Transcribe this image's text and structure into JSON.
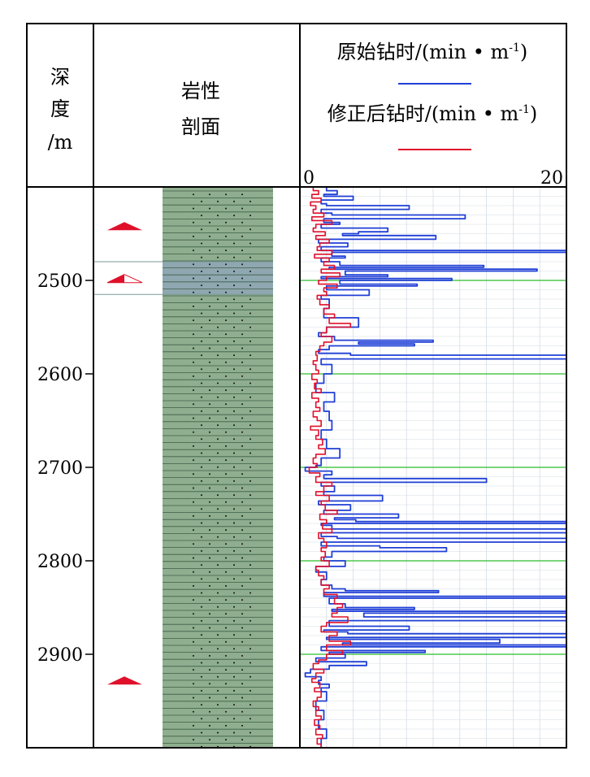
{
  "headers": {
    "depth": [
      "深",
      "度",
      "/m"
    ],
    "lithology": [
      "岩性",
      "剖面"
    ],
    "raw_label": "原始钻时/(min • m",
    "corr_label": "修正后钻时/(min • m",
    "unit_sup": "-1",
    "unit_close": ")"
  },
  "colors": {
    "raw": "#1f3fd6",
    "corrected": "#e0102a",
    "marker_green": "#2bbd2b",
    "sandstone": "#8fae8f",
    "sandstone_blue": "#8fa7b0",
    "triangle": "#e0102a",
    "grid": "#d4dde4"
  },
  "chart_data": {
    "type": "line",
    "orientation": "vertical-depth-track",
    "depth_axis": {
      "label": "深度/m",
      "range": [
        2400,
        3000
      ],
      "inverted": true,
      "ticks": [
        2500,
        2600,
        2700,
        2800,
        2900
      ]
    },
    "value_axis": {
      "label": "钻时/(min • m-1)",
      "range": [
        0,
        20
      ],
      "tick_labels": [
        "0",
        "20"
      ],
      "grid_step": 2
    },
    "marker_depths": [
      2500,
      2600,
      2700,
      2800,
      2900
    ],
    "lithology": {
      "rock": "sandstone",
      "interval": [
        2400,
        3000
      ],
      "highlight_interval": [
        2480,
        2515
      ]
    },
    "oil_markers": [
      {
        "depth": 2442,
        "fill": "solid"
      },
      {
        "depth": 2498,
        "fill": "half"
      },
      {
        "depth": 2928,
        "fill": "solid"
      }
    ],
    "series": [
      {
        "name": "原始钻时",
        "depth": [
          2400,
          2404,
          2408,
          2410,
          2414,
          2418,
          2420,
          2424,
          2428,
          2430,
          2434,
          2438,
          2440,
          2444,
          2448,
          2450,
          2452,
          2456,
          2460,
          2464,
          2468,
          2470,
          2474,
          2476,
          2480,
          2484,
          2486,
          2488,
          2490,
          2494,
          2496,
          2498,
          2500,
          2504,
          2506,
          2510,
          2516,
          2520,
          2530,
          2540,
          2550,
          2556,
          2560,
          2564,
          2566,
          2568,
          2570,
          2574,
          2578,
          2580,
          2584,
          2590,
          2600,
          2610,
          2620,
          2630,
          2640,
          2650,
          2660,
          2670,
          2680,
          2690,
          2698,
          2700,
          2704,
          2708,
          2712,
          2716,
          2720,
          2726,
          2730,
          2736,
          2740,
          2746,
          2750,
          2754,
          2756,
          2758,
          2760,
          2762,
          2766,
          2770,
          2774,
          2776,
          2780,
          2784,
          2786,
          2790,
          2796,
          2800,
          2806,
          2812,
          2820,
          2826,
          2830,
          2832,
          2834,
          2838,
          2840,
          2846,
          2850,
          2852,
          2854,
          2856,
          2860,
          2864,
          2870,
          2874,
          2876,
          2878,
          2882,
          2884,
          2888,
          2890,
          2892,
          2896,
          2898,
          2900,
          2904,
          2908,
          2912,
          2916,
          2920,
          2924,
          2928,
          2932,
          2936,
          2940,
          2950,
          2960,
          2970,
          2980,
          2990,
          3000
        ],
        "value": [
          2.0,
          2.8,
          1.8,
          4.0,
          1.6,
          2.0,
          8.2,
          1.6,
          2.4,
          12.4,
          1.8,
          3.0,
          1.6,
          6.6,
          4.4,
          3.2,
          10.2,
          1.4,
          3.6,
          1.6,
          20.0,
          2.4,
          3.4,
          1.6,
          3.0,
          13.8,
          2.2,
          17.8,
          3.4,
          6.6,
          1.6,
          11.4,
          3.0,
          8.8,
          2.0,
          5.2,
          1.6,
          2.2,
          1.8,
          4.4,
          2.0,
          1.4,
          2.6,
          10.0,
          4.4,
          8.6,
          2.2,
          1.4,
          3.8,
          20.0,
          1.6,
          2.4,
          1.8,
          1.2,
          2.6,
          1.8,
          2.2,
          2.4,
          1.6,
          2.0,
          3.0,
          1.6,
          1.2,
          0.4,
          2.4,
          1.8,
          14.0,
          1.6,
          2.6,
          1.8,
          6.2,
          1.4,
          3.8,
          1.8,
          7.4,
          2.6,
          4.2,
          20.0,
          1.6,
          2.4,
          20.0,
          1.6,
          2.8,
          20.0,
          1.6,
          6.0,
          11.0,
          2.4,
          1.8,
          3.4,
          1.2,
          2.0,
          1.6,
          2.4,
          3.4,
          10.4,
          1.8,
          20.0,
          2.2,
          3.4,
          8.6,
          2.4,
          20.0,
          4.8,
          20.0,
          2.2,
          8.2,
          1.8,
          3.6,
          20.0,
          2.0,
          15.0,
          3.2,
          20.0,
          1.6,
          9.4,
          2.2,
          3.4,
          1.2,
          5.0,
          2.2,
          0.8,
          0.4,
          1.6,
          1.4,
          2.2,
          1.6,
          2.0,
          1.2,
          1.8,
          1.4,
          2.0,
          1.6,
          1.2
        ]
      },
      {
        "name": "修正后钻时",
        "depth": [
          2400,
          2404,
          2408,
          2412,
          2416,
          2420,
          2424,
          2428,
          2432,
          2436,
          2440,
          2444,
          2448,
          2452,
          2456,
          2460,
          2464,
          2468,
          2472,
          2476,
          2480,
          2484,
          2488,
          2492,
          2496,
          2500,
          2504,
          2508,
          2512,
          2516,
          2520,
          2526,
          2530,
          2536,
          2540,
          2546,
          2550,
          2556,
          2560,
          2566,
          2570,
          2576,
          2580,
          2586,
          2590,
          2596,
          2600,
          2606,
          2610,
          2616,
          2620,
          2626,
          2630,
          2636,
          2640,
          2646,
          2650,
          2656,
          2660,
          2666,
          2670,
          2676,
          2680,
          2686,
          2690,
          2696,
          2700,
          2706,
          2710,
          2716,
          2720,
          2726,
          2730,
          2736,
          2740,
          2746,
          2750,
          2756,
          2760,
          2766,
          2770,
          2776,
          2780,
          2786,
          2790,
          2796,
          2800,
          2806,
          2810,
          2816,
          2820,
          2826,
          2830,
          2836,
          2840,
          2846,
          2850,
          2856,
          2860,
          2866,
          2870,
          2876,
          2880,
          2886,
          2890,
          2896,
          2900,
          2906,
          2910,
          2916,
          2920,
          2926,
          2930,
          2936,
          2940,
          2946,
          2950,
          2956,
          2960,
          2966,
          2970,
          2976,
          2980,
          2986,
          2990,
          2996,
          3000
        ],
        "value": [
          1.0,
          1.4,
          0.9,
          1.6,
          0.8,
          1.2,
          1.0,
          1.8,
          0.9,
          2.4,
          1.2,
          1.0,
          1.9,
          1.2,
          2.2,
          1.5,
          1.3,
          2.4,
          1.1,
          2.2,
          1.8,
          2.6,
          1.6,
          3.0,
          2.0,
          1.4,
          2.8,
          1.8,
          2.0,
          1.3,
          1.5,
          2.2,
          1.8,
          2.6,
          2.2,
          3.8,
          2.0,
          1.6,
          2.4,
          1.8,
          1.5,
          1.2,
          1.3,
          1.0,
          1.2,
          1.4,
          0.9,
          1.3,
          1.1,
          1.6,
          0.9,
          1.4,
          1.2,
          1.5,
          1.0,
          1.3,
          1.6,
          0.8,
          1.4,
          1.2,
          1.7,
          1.4,
          1.9,
          1.2,
          1.0,
          1.3,
          0.7,
          1.5,
          1.2,
          2.4,
          1.8,
          1.2,
          2.2,
          1.6,
          1.9,
          2.8,
          1.5,
          2.0,
          1.7,
          2.4,
          1.4,
          1.8,
          2.0,
          1.6,
          1.9,
          1.6,
          2.2,
          1.2,
          1.4,
          1.8,
          1.6,
          2.2,
          1.8,
          2.8,
          2.6,
          3.2,
          2.8,
          2.4,
          3.6,
          2.0,
          1.6,
          2.8,
          2.2,
          3.8,
          2.0,
          3.2,
          2.0,
          1.4,
          1.0,
          1.8,
          1.2,
          0.9,
          1.5,
          1.1,
          1.6,
          1.3,
          1.0,
          1.4,
          1.2,
          1.6,
          1.1,
          1.5,
          1.2,
          1.7,
          1.3,
          1.6,
          1.2
        ]
      }
    ]
  }
}
